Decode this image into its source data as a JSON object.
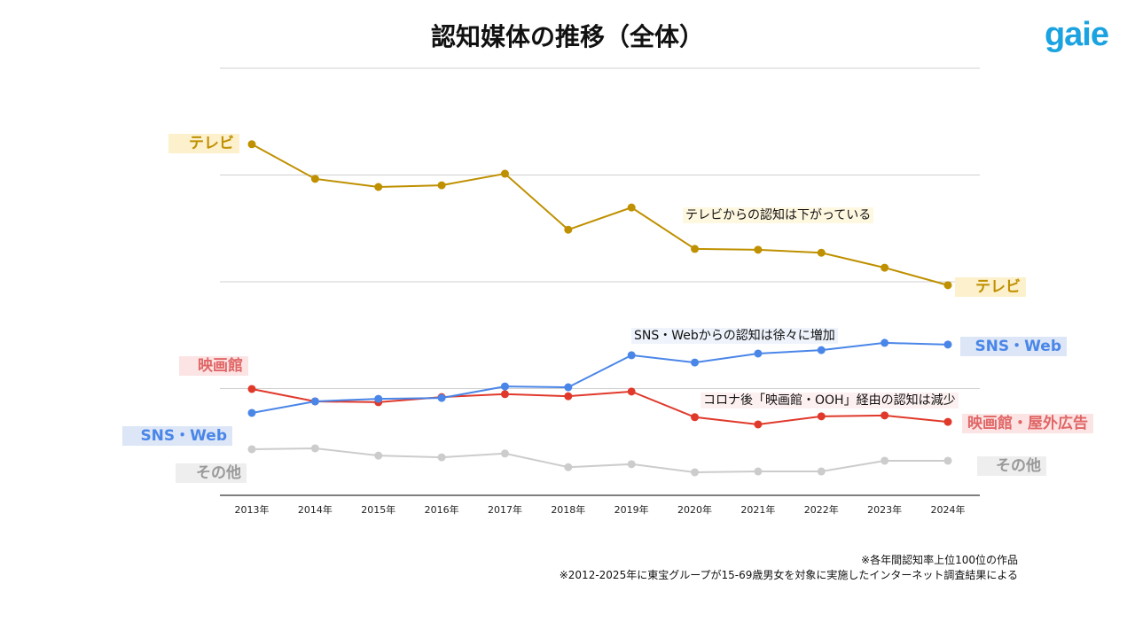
{
  "header": {
    "title": "認知媒体の推移（全体）",
    "logo": "gaie"
  },
  "chart_data": {
    "type": "line",
    "title": "認知媒体の推移（全体）",
    "categories": [
      "2013年",
      "2014年",
      "2015年",
      "2016年",
      "2017年",
      "2018年",
      "2019年",
      "2020年",
      "2021年",
      "2022年",
      "2023年",
      "2024年"
    ],
    "ylim": [
      0,
      100
    ],
    "grid": true,
    "y_tick_labels_shown": false,
    "series": [
      {
        "name": "テレビ",
        "color": "#bf9000",
        "values": [
          82.2,
          74.1,
          72.2,
          72.6,
          75.3,
          62.2,
          67.4,
          57.7,
          57.5,
          56.8,
          53.3,
          49.2
        ]
      },
      {
        "name": "SNS・Web",
        "color": "#4a86e8",
        "values": [
          19.3,
          22.0,
          22.6,
          22.8,
          25.5,
          25.3,
          32.8,
          31.1,
          33.2,
          34.0,
          35.7,
          35.3
        ]
      },
      {
        "name": "映画館・屋外広告",
        "color": "#e0392b",
        "values": [
          24.9,
          22.0,
          21.8,
          23.0,
          23.7,
          23.2,
          24.3,
          18.3,
          16.6,
          18.5,
          18.7,
          17.2
        ]
      },
      {
        "name": "その他",
        "color": "#cccccc",
        "values": [
          10.8,
          11.0,
          9.3,
          8.9,
          9.8,
          6.6,
          7.3,
          5.4,
          5.6,
          5.6,
          8.1,
          8.1
        ]
      }
    ],
    "start_labels": {
      "tv": "テレビ",
      "cinema": "映画館",
      "sns": "SNS・Web",
      "other": "その他"
    },
    "end_labels": {
      "tv": "テレビ",
      "sns": "SNS・Web",
      "cinema": "映画館・屋外広告",
      "other": "その他"
    },
    "annotations": {
      "tv": "テレビからの認知は下がっている",
      "sns": "SNS・Webからの認知は徐々に増加",
      "cinema": "コロナ後「映画館・OOH」経由の認知は減少"
    }
  },
  "notes": [
    "※各年間認知率上位100位の作品",
    "※2012-2025年に東宝グループが15-69歳男女を対象に実施したインターネット調査結果による"
  ]
}
